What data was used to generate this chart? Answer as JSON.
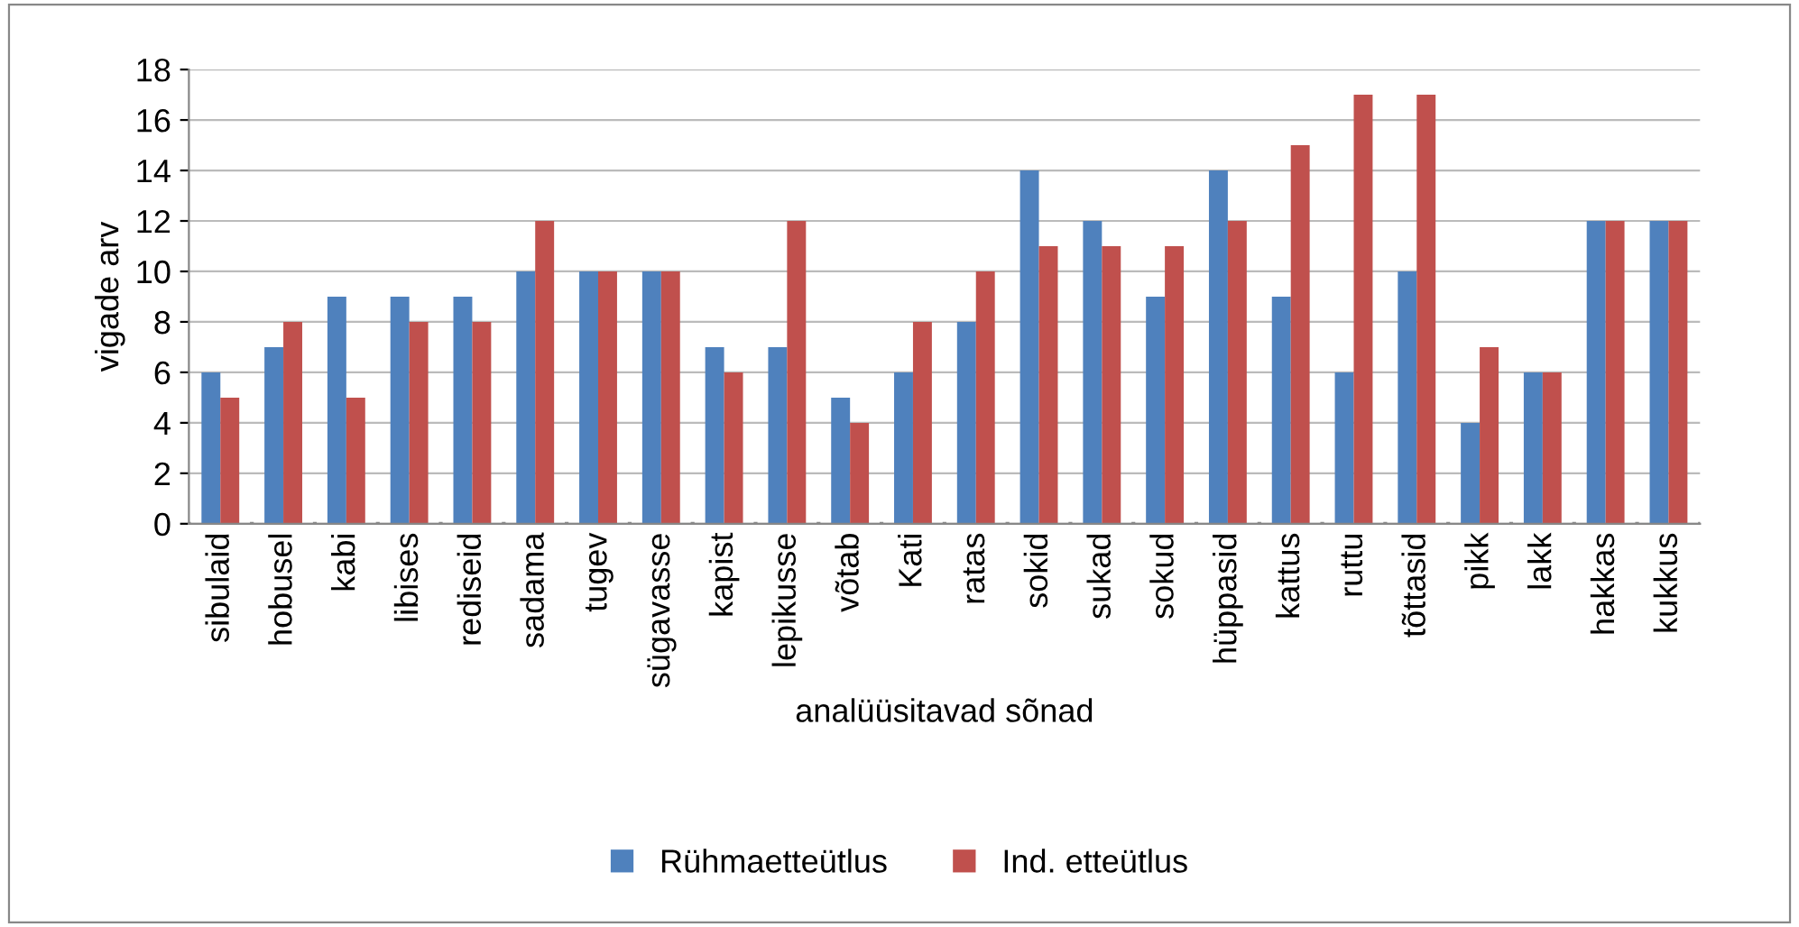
{
  "chart_data": {
    "type": "bar",
    "xlabel": "analüüsitavad sõnad",
    "ylabel": "vigade arv",
    "categories": [
      "sibulaid",
      "hobusel",
      "kabi",
      "libises",
      "rediseid",
      "sadama",
      "tugev",
      "sügavasse",
      "kapist",
      "lepikusse",
      "võtab",
      "Kati",
      "ratas",
      "sokid",
      "sukad",
      "sokud",
      "hüppasid",
      "kattus",
      "ruttu",
      "tõttasid",
      "pikk",
      "lakk",
      "hakkas",
      "kukkus"
    ],
    "series": [
      {
        "name": "Rühmaetteütlus",
        "color": "#4f81bd",
        "values": [
          6,
          7,
          9,
          9,
          9,
          10,
          10,
          10,
          7,
          7,
          5,
          6,
          8,
          14,
          12,
          9,
          14,
          9,
          6,
          10,
          4,
          6,
          12,
          12
        ]
      },
      {
        "name": "Ind. etteütlus",
        "color": "#c0504d",
        "values": [
          5,
          8,
          5,
          8,
          8,
          12,
          10,
          10,
          6,
          12,
          4,
          8,
          10,
          11,
          11,
          11,
          12,
          15,
          17,
          17,
          7,
          6,
          12,
          12
        ]
      }
    ],
    "ylim": [
      0,
      18
    ],
    "yticks": [
      0,
      2,
      4,
      6,
      8,
      10,
      12,
      14,
      16,
      18
    ],
    "grid": "y",
    "legend": "bottom"
  }
}
